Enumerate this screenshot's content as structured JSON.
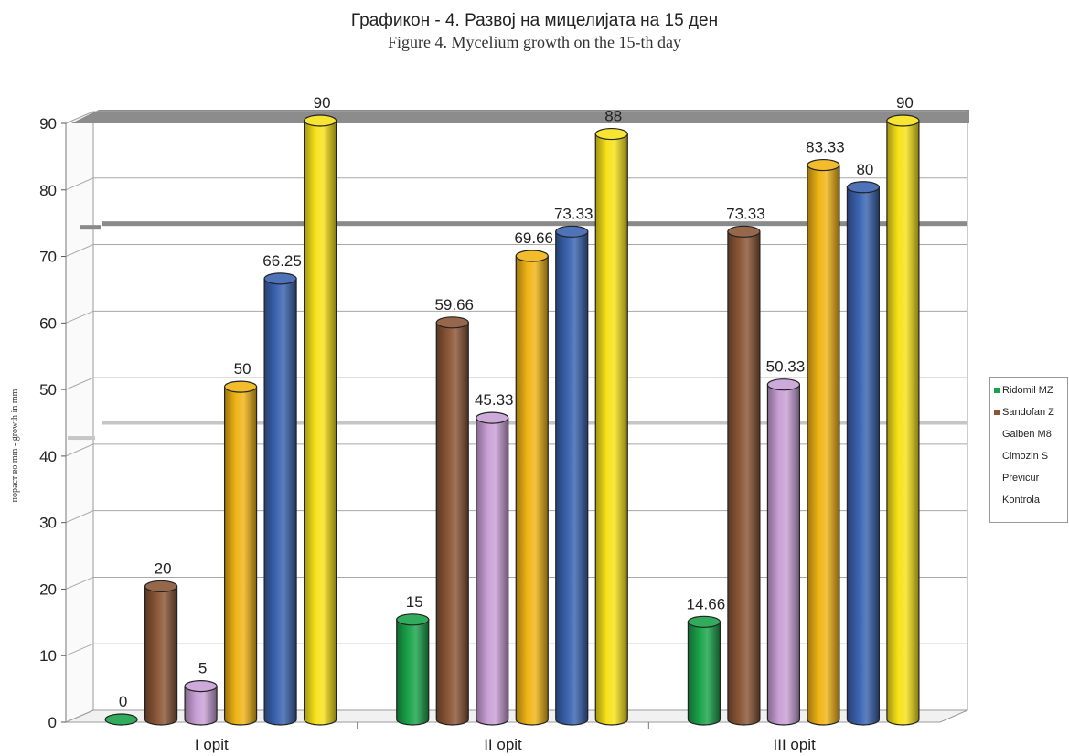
{
  "chart_data": {
    "type": "bar",
    "title": "Графикон - 4. Развој на мицелијата на 15 ден",
    "subtitle": "Figure 4. Mycelium growth on the 15-th day",
    "ylabel": "пораст во mm - growth in mm",
    "xlabel": "",
    "ylim": [
      0,
      90
    ],
    "yticks": [
      0,
      10,
      20,
      30,
      40,
      50,
      60,
      70,
      80,
      90
    ],
    "categories": [
      "I opit",
      "II opit",
      "III opit"
    ],
    "series": [
      {
        "name": "Ridomil MZ",
        "values": [
          0,
          15,
          14.66
        ],
        "labels": [
          "0",
          "15",
          "14.66"
        ],
        "color": "#1aa34a"
      },
      {
        "name": "Sandofan Z",
        "values": [
          20,
          59.66,
          73.33
        ],
        "labels": [
          "20",
          "59.66",
          "73.33"
        ],
        "color": "#8a5636"
      },
      {
        "name": "Galben M8",
        "values": [
          5,
          45.33,
          50.33
        ],
        "labels": [
          "5",
          "45.33",
          "50.33"
        ],
        "color": "#c9a0d6"
      },
      {
        "name": "Cimozin S",
        "values": [
          50,
          69.66,
          83.33
        ],
        "labels": [
          "50",
          "69.66",
          "83.33"
        ],
        "color": "#f0b416"
      },
      {
        "name": "Previcur",
        "values": [
          66.25,
          73.33,
          80
        ],
        "labels": [
          "66.25",
          "73.33",
          "80"
        ],
        "color": "#3a63b0"
      },
      {
        "name": "Kontrola",
        "values": [
          90,
          88,
          90
        ],
        "labels": [
          "90",
          "88",
          "90"
        ],
        "color": "#f7e21a"
      }
    ],
    "grid": true,
    "legend_position": "right"
  }
}
